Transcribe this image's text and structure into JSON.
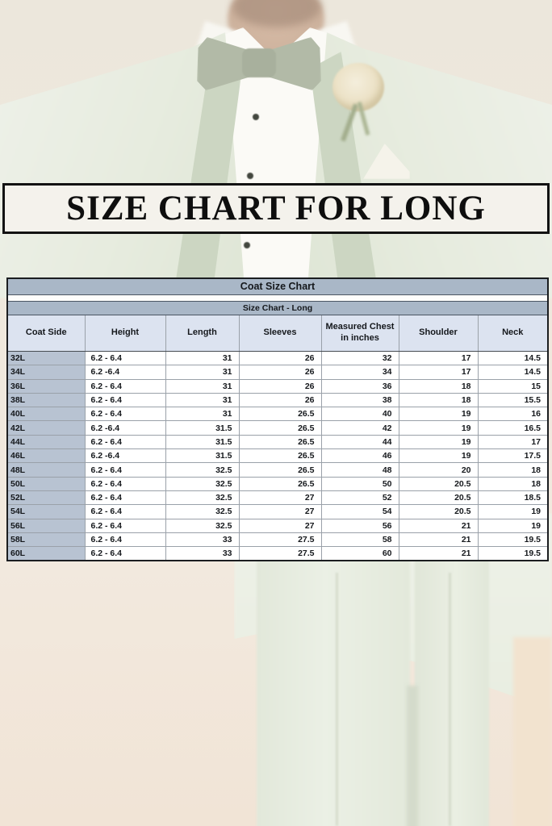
{
  "banner": {
    "title": "SIZE CHART FOR LONG"
  },
  "table": {
    "title": "Coat Size Chart",
    "subtitle": "Size Chart - Long"
  },
  "chart_data": {
    "type": "table",
    "title": "Coat Size Chart",
    "subtitle": "Size Chart - Long",
    "columns": [
      "Coat Side",
      "Height",
      "Length",
      "Sleeves",
      "Measured Chest in inches",
      "Shoulder",
      "Neck"
    ],
    "rows": [
      [
        "32L",
        "6.2 - 6.4",
        "31",
        "26",
        "32",
        "17",
        "14.5"
      ],
      [
        "34L",
        "6.2 -6.4",
        "31",
        "26",
        "34",
        "17",
        "14.5"
      ],
      [
        "36L",
        "6.2 - 6.4",
        "31",
        "26",
        "36",
        "18",
        "15"
      ],
      [
        "38L",
        "6.2 - 6.4",
        "31",
        "26",
        "38",
        "18",
        "15.5"
      ],
      [
        "40L",
        "6.2 - 6.4",
        "31",
        "26.5",
        "40",
        "19",
        "16"
      ],
      [
        "42L",
        "6.2 -6.4",
        "31.5",
        "26.5",
        "42",
        "19",
        "16.5"
      ],
      [
        "44L",
        "6.2 - 6.4",
        "31.5",
        "26.5",
        "44",
        "19",
        "17"
      ],
      [
        "46L",
        "6.2 -6.4",
        "31.5",
        "26.5",
        "46",
        "19",
        "17.5"
      ],
      [
        "48L",
        "6.2 - 6.4",
        "32.5",
        "26.5",
        "48",
        "20",
        "18"
      ],
      [
        "50L",
        "6.2 - 6.4",
        "32.5",
        "26.5",
        "50",
        "20.5",
        "18"
      ],
      [
        "52L",
        "6.2 - 6.4",
        "32.5",
        "27",
        "52",
        "20.5",
        "18.5"
      ],
      [
        "54L",
        "6.2 - 6.4",
        "32.5",
        "27",
        "54",
        "20.5",
        "19"
      ],
      [
        "56L",
        "6.2 - 6.4",
        "32.5",
        "27",
        "56",
        "21",
        "19"
      ],
      [
        "58L",
        "6.2 - 6.4",
        "33",
        "27.5",
        "58",
        "21",
        "19.5"
      ],
      [
        "60L",
        "6.2 - 6.4",
        "33",
        "27.5",
        "60",
        "21",
        "19.5"
      ]
    ]
  },
  "colors": {
    "banner_bg": "#f4f2ec",
    "banner_border": "#121212",
    "title_bar_bg": "#a9b7c7",
    "subtitle_bar_bg": "#a9b7c7",
    "header_row_bg": "#dce3f0",
    "first_col_bg": "#b8c3d2",
    "cell_border": "#9aa1a9",
    "table_border_dark": "#1b1d20",
    "text_dark": "#15181c",
    "suit_green": "#e7ecdf",
    "lapel_green": "#ccd6c2",
    "bowtie_green": "#b2baa7"
  }
}
